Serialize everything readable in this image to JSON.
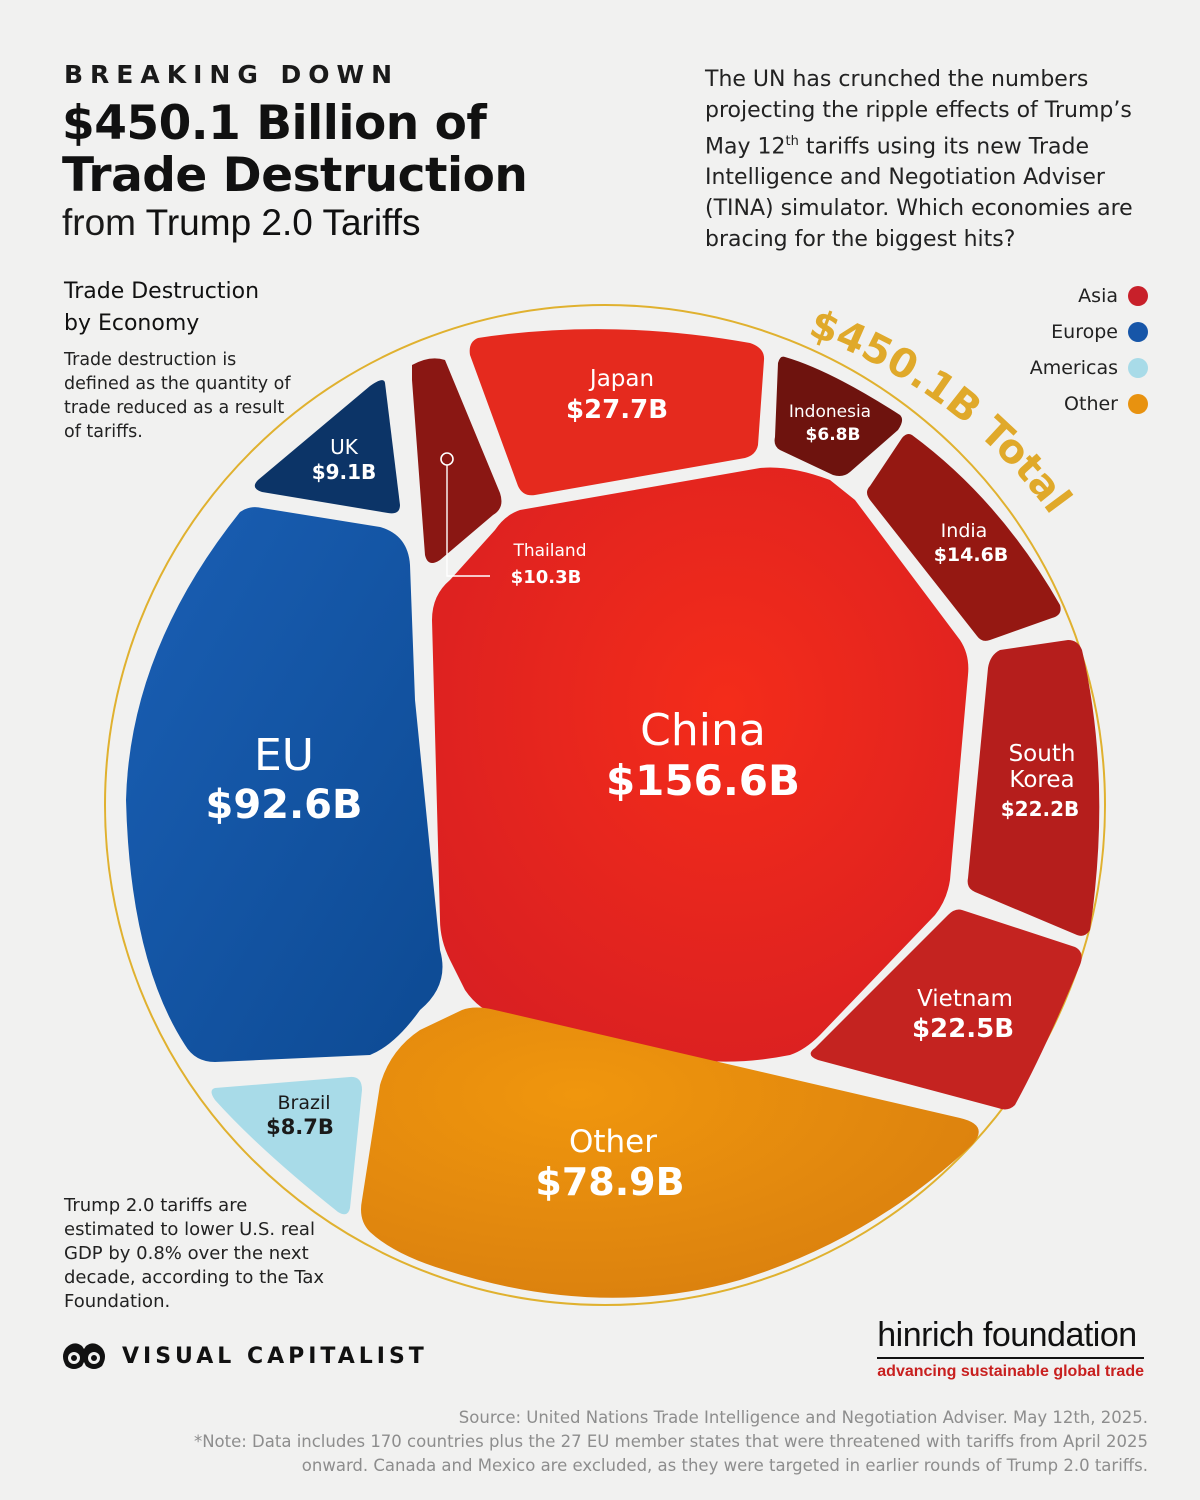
{
  "header": {
    "kicker": "BREAKING DOWN",
    "title_line1": "$450.1 Billion of",
    "title_line2": "Trade Destruction",
    "subtitle_prefix": "from ",
    "subtitle_emph": "Trump 2.0 Tariffs"
  },
  "intro": {
    "part1": "The UN has crunched the numbers projecting the ripple effects of Trump’s May 12",
    "sup": "th",
    "part2": " tariffs using its new Trade Intelligence and Negotiation Adviser (TINA) simulator. Which economies are bracing for the biggest hits?"
  },
  "chart_heading": {
    "line1": "Trade Destruction",
    "line2": "by Economy"
  },
  "definition": "Trade destruction is defined as the quantity of trade reduced as a result of tariffs.",
  "gdp_note": "Trump 2.0 tariffs are estimated to lower U.S. real GDP by 0.8% over the next decade, according to the Tax Foundation.",
  "total_label": "$450.1B Total",
  "legend": [
    {
      "label": "Asia",
      "color": "#c8202a"
    },
    {
      "label": "Europe",
      "color": "#1756a8"
    },
    {
      "label": "Americas",
      "color": "#a8dbe8"
    },
    {
      "label": "Other",
      "color": "#e8920f"
    }
  ],
  "chart_data": {
    "type": "voronoi_treemap",
    "title": "Trade Destruction by Economy",
    "total": "$450.1B Total",
    "unit": "USD billions",
    "cells": [
      {
        "name": "China",
        "value": 156.6,
        "value_label": "$156.6B",
        "region": "Asia"
      },
      {
        "name": "EU",
        "value": 92.6,
        "value_label": "$92.6B",
        "region": "Europe"
      },
      {
        "name": "Other",
        "value": 78.9,
        "value_label": "$78.9B",
        "region": "Other"
      },
      {
        "name": "Japan",
        "value": 27.7,
        "value_label": "$27.7B",
        "region": "Asia"
      },
      {
        "name": "Vietnam",
        "value": 22.5,
        "value_label": "$22.5B",
        "region": "Asia"
      },
      {
        "name": "South Korea",
        "name_lines": [
          "South",
          "Korea"
        ],
        "value": 22.2,
        "value_label": "$22.2B",
        "region": "Asia"
      },
      {
        "name": "India",
        "value": 14.6,
        "value_label": "$14.6B",
        "region": "Asia"
      },
      {
        "name": "Thailand",
        "value": 10.3,
        "value_label": "$10.3B",
        "region": "Asia"
      },
      {
        "name": "UK",
        "value": 9.1,
        "value_label": "$9.1B",
        "region": "Europe"
      },
      {
        "name": "Brazil",
        "value": 8.7,
        "value_label": "$8.7B",
        "region": "Americas"
      },
      {
        "name": "Indonesia",
        "value": 6.8,
        "value_label": "$6.8B",
        "region": "Asia"
      }
    ]
  },
  "logos": {
    "vc": "VISUAL CAPITALIST",
    "hinrich_name": "hinrich foundation",
    "hinrich_tag": "advancing sustainable global trade"
  },
  "footer": {
    "source": "Source: United Nations Trade Intelligence and Negotiation Adviser. May 12th, 2025.",
    "note": "*Note: Data includes 170 countries plus the 27 EU member states that were threatened with tariffs from April 2025 onward. Canada and Mexico are excluded, as they were targeted in earlier rounds of Trump 2.0 tariffs."
  }
}
